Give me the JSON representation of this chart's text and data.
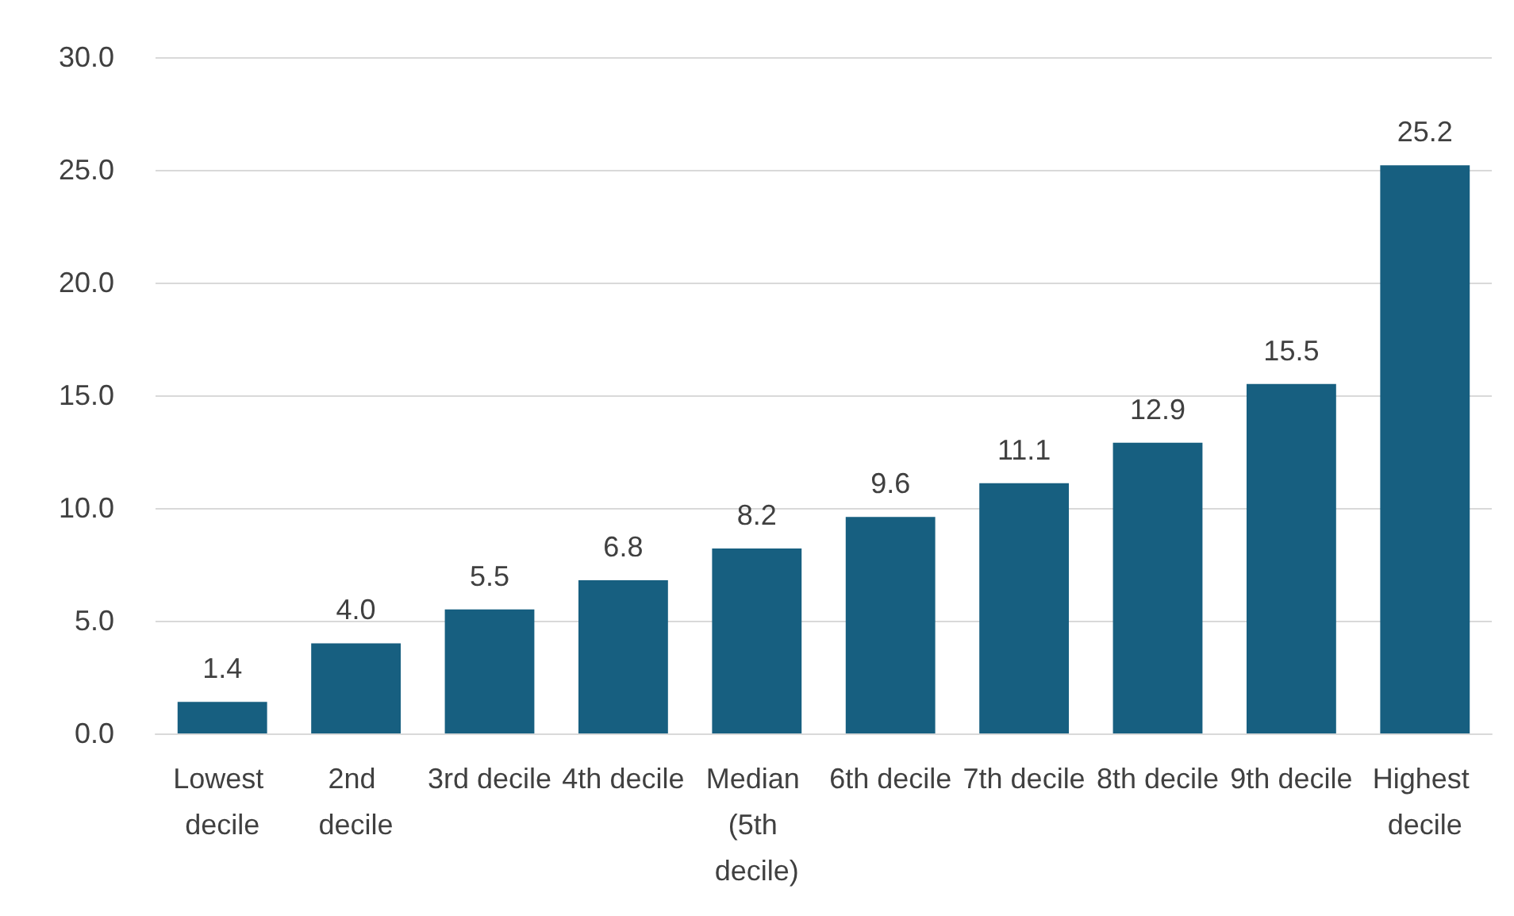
{
  "chart_data": {
    "type": "bar",
    "categories": [
      "Lowest decile",
      "2nd decile",
      "3rd decile",
      "4th decile",
      "Median (5th decile)",
      "6th decile",
      "7th decile",
      "8th decile",
      "9th decile",
      "Highest decile"
    ],
    "values": [
      1.4,
      4.0,
      5.5,
      6.8,
      8.2,
      9.6,
      11.1,
      12.9,
      15.5,
      25.2
    ],
    "value_labels": [
      "1.4",
      "4.0",
      "5.5",
      "6.8",
      "8.2",
      "9.6",
      "11.1",
      "12.9",
      "15.5",
      "25.2"
    ],
    "color": "#175f80",
    "ylim": [
      0,
      30
    ],
    "yticks": [
      {
        "value": 0,
        "label": "0.0"
      },
      {
        "value": 5,
        "label": "5.0"
      },
      {
        "value": 10,
        "label": "10.0"
      },
      {
        "value": 15,
        "label": "15.0"
      },
      {
        "value": 20,
        "label": "20.0"
      },
      {
        "value": 25,
        "label": "25.0"
      },
      {
        "value": 30,
        "label": "30.0"
      }
    ],
    "grid": "y"
  }
}
